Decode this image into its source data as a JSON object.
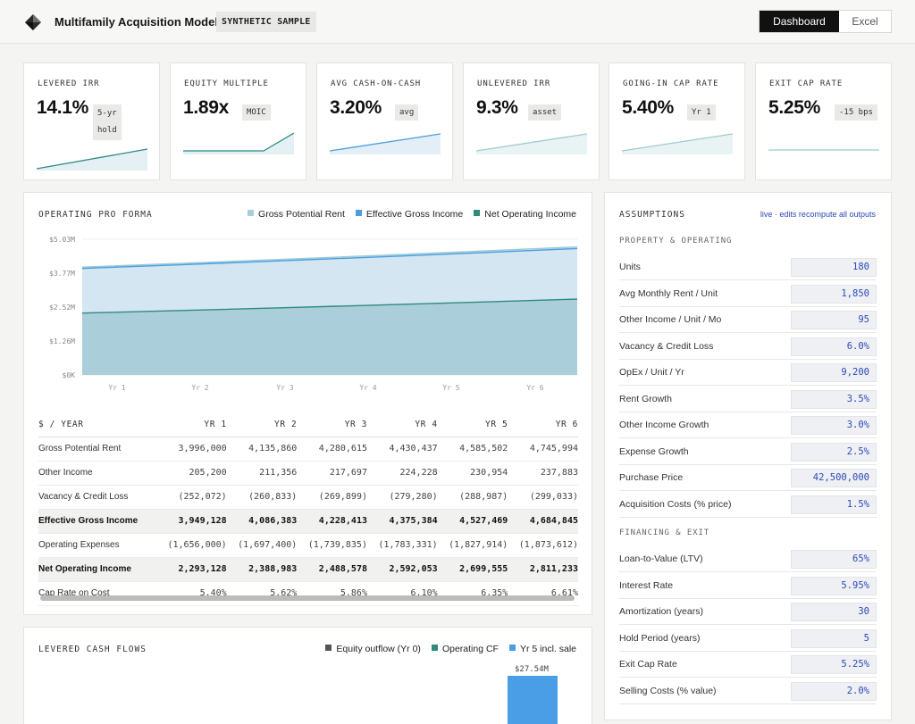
{
  "header": {
    "title": "Multifamily Acquisition Model",
    "badge": "SYNTHETIC SAMPLE",
    "tabs": [
      {
        "label": "Dashboard",
        "active": true
      },
      {
        "label": "Excel",
        "active": false
      }
    ]
  },
  "colors": {
    "accent": "#2e8a80",
    "gpr": "#a7cdd8",
    "egi": "#4a9ee0",
    "noi": "#2f8a7e",
    "equity": "#555555",
    "sale": "#4a9ee6",
    "input_text": "#2d49b8"
  },
  "kpis": [
    {
      "label": "LEVERED IRR",
      "value": "14.1%",
      "chip": [
        "5-yr",
        "hold"
      ]
    },
    {
      "label": "EQUITY MULTIPLE",
      "value": "1.89x",
      "chip": [
        "MOIC"
      ]
    },
    {
      "label": "AVG CASH-ON-CASH",
      "value": "3.20%",
      "chip": [
        "avg"
      ]
    },
    {
      "label": "UNLEVERED IRR",
      "value": "9.3%",
      "chip": [
        "asset"
      ]
    },
    {
      "label": "GOING-IN CAP RATE",
      "value": "5.40%",
      "chip": [
        "Yr 1"
      ]
    },
    {
      "label": "EXIT CAP RATE",
      "value": "5.25%",
      "chip": [
        "-15 bps"
      ]
    }
  ],
  "proforma": {
    "title": "OPERATING PRO FORMA",
    "legend": [
      "Gross Potential Rent",
      "Effective Gross Income",
      "Net Operating Income"
    ],
    "columns": [
      "$ / YEAR",
      "YR 1",
      "YR 2",
      "YR 3",
      "YR 4",
      "YR 5",
      "YR 6"
    ],
    "rows": [
      {
        "label": "Gross Potential Rent",
        "values": [
          "3,996,000",
          "4,135,860",
          "4,280,615",
          "4,430,437",
          "4,585,502",
          "4,745,994"
        ],
        "bold": false
      },
      {
        "label": "Other Income",
        "values": [
          "205,200",
          "211,356",
          "217,697",
          "224,228",
          "230,954",
          "237,883"
        ],
        "bold": false
      },
      {
        "label": "Vacancy & Credit Loss",
        "values": [
          "(252,072)",
          "(260,833)",
          "(269,899)",
          "(279,280)",
          "(288,987)",
          "(299,033)"
        ],
        "bold": false
      },
      {
        "label": "Effective Gross Income",
        "values": [
          "3,949,128",
          "4,086,383",
          "4,228,413",
          "4,375,384",
          "4,527,469",
          "4,684,845"
        ],
        "bold": true
      },
      {
        "label": "Operating Expenses",
        "values": [
          "(1,656,000)",
          "(1,697,400)",
          "(1,739,835)",
          "(1,783,331)",
          "(1,827,914)",
          "(1,873,612)"
        ],
        "bold": false
      },
      {
        "label": "Net Operating Income",
        "values": [
          "2,293,128",
          "2,388,983",
          "2,488,578",
          "2,592,053",
          "2,699,555",
          "2,811,233"
        ],
        "bold": true
      },
      {
        "label": "Cap Rate on Cost",
        "values": [
          "5.40%",
          "5.62%",
          "5.86%",
          "6.10%",
          "6.35%",
          "6.61%"
        ],
        "bold": false
      }
    ]
  },
  "chart_data": [
    {
      "type": "area",
      "categories": [
        "Yr 1",
        "Yr 2",
        "Yr 3",
        "Yr 4",
        "Yr 5",
        "Yr 6"
      ],
      "y_ticks": [
        "$5.03M",
        "$3.77M",
        "$2.52M",
        "$1.26M",
        "$0K"
      ],
      "ylim": [
        0,
        5030000
      ],
      "series": [
        {
          "name": "Gross Potential Rent",
          "values": [
            3996000,
            4135860,
            4280615,
            4430437,
            4585502,
            4745994
          ]
        },
        {
          "name": "Effective Gross Income",
          "values": [
            3949128,
            4086383,
            4228413,
            4375384,
            4527469,
            4684845
          ]
        },
        {
          "name": "Net Operating Income",
          "values": [
            2293128,
            2388983,
            2488578,
            2592053,
            2699555,
            2811233
          ]
        }
      ]
    },
    {
      "type": "bar",
      "legend": [
        "Equity outflow (Yr 0)",
        "Operating CF",
        "Yr 5 incl. sale"
      ],
      "data_labels": [
        "$27.54M"
      ],
      "values": [
        27540000
      ]
    }
  ],
  "cashflows": {
    "title": "LEVERED CASH FLOWS"
  },
  "assumptions": {
    "title": "ASSUMPTIONS",
    "note": "live · edits recompute all outputs",
    "sections": [
      {
        "title": "PROPERTY & OPERATING",
        "rows": [
          {
            "label": "Units",
            "value": "180"
          },
          {
            "label": "Avg Monthly Rent / Unit",
            "value": "1,850"
          },
          {
            "label": "Other Income / Unit / Mo",
            "value": "95"
          },
          {
            "label": "Vacancy & Credit Loss",
            "value": "6.0%"
          },
          {
            "label": "OpEx / Unit / Yr",
            "value": "9,200"
          },
          {
            "label": "Rent Growth",
            "value": "3.5%"
          },
          {
            "label": "Other Income Growth",
            "value": "3.0%"
          },
          {
            "label": "Expense Growth",
            "value": "2.5%"
          },
          {
            "label": "Purchase Price",
            "value": "42,500,000"
          },
          {
            "label": "Acquisition Costs (% price)",
            "value": "1.5%"
          }
        ]
      },
      {
        "title": "FINANCING & EXIT",
        "rows": [
          {
            "label": "Loan-to-Value (LTV)",
            "value": "65%"
          },
          {
            "label": "Interest Rate",
            "value": "5.95%"
          },
          {
            "label": "Amortization (years)",
            "value": "30"
          },
          {
            "label": "Hold Period (years)",
            "value": "5"
          },
          {
            "label": "Exit Cap Rate",
            "value": "5.25%"
          },
          {
            "label": "Selling Costs (% value)",
            "value": "2.0%"
          }
        ]
      }
    ]
  }
}
